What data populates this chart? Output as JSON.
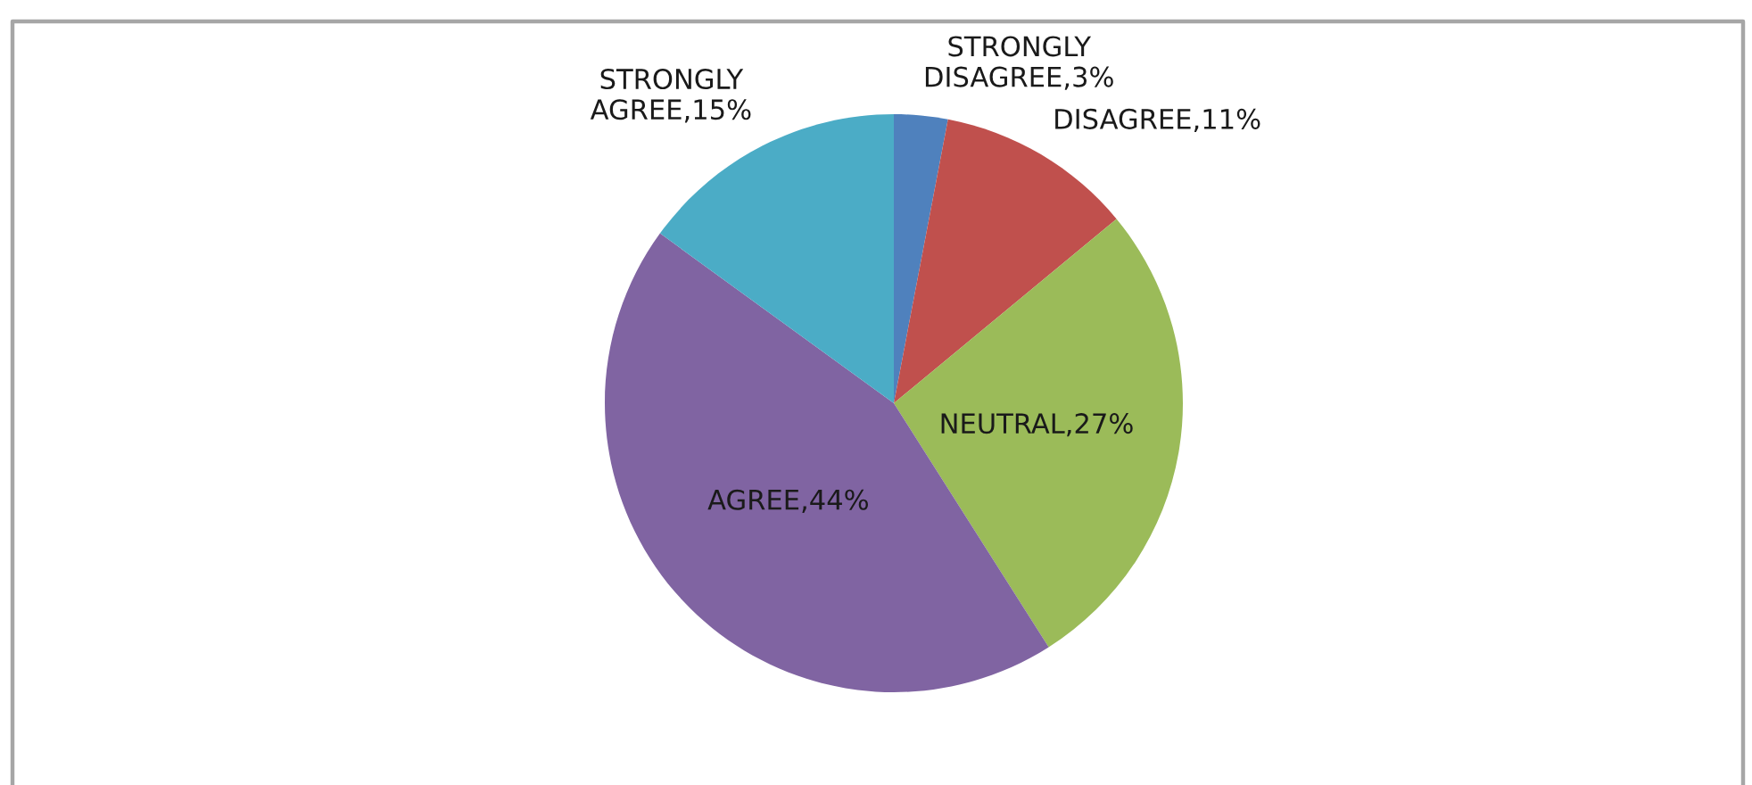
{
  "chart_data": {
    "type": "pie",
    "categories": [
      "STRONGLY DISAGREE",
      "DISAGREE",
      "NEUTRAL",
      "AGREE",
      "STRONGLY AGREE"
    ],
    "values": [
      3,
      11,
      27,
      44,
      15
    ],
    "colors": [
      "#4f81bd",
      "#c0504d",
      "#9bbb59",
      "#8064a2",
      "#4bacc6"
    ],
    "value_labels": [
      "3%",
      "11%",
      "27%",
      "44%",
      "15%"
    ]
  }
}
